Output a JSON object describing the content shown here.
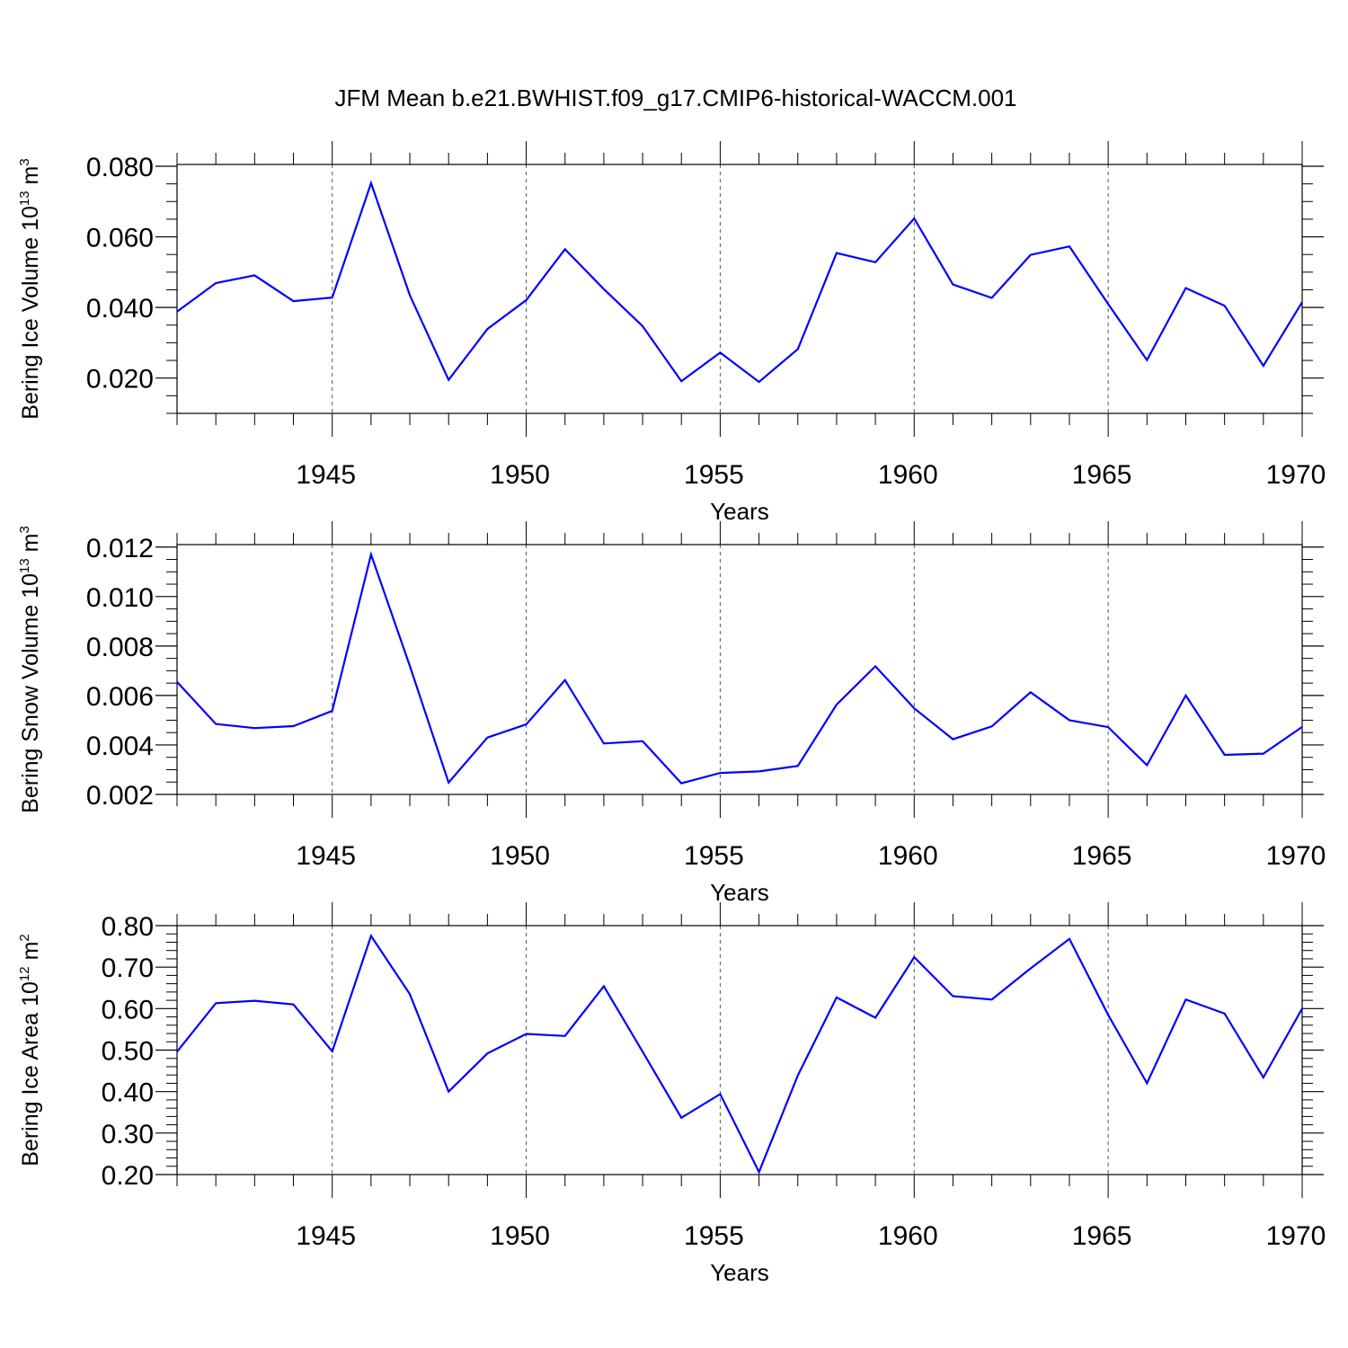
{
  "title": "JFM Mean b.e21.BWHIST.f09_g17.CMIP6-historical-WACCM.001",
  "chart_data": [
    {
      "type": "line",
      "ylabel": "Bering Ice Volume 10",
      "ylabel_exp": "13",
      "ylabel_unit": " m",
      "ylabel_unit_exp": "3",
      "xlabel": "Years",
      "xlim": [
        1941,
        1970
      ],
      "ylim": [
        0.01,
        0.0805
      ],
      "yticks": [
        0.02,
        0.04,
        0.06,
        0.08
      ],
      "ytick_labels": [
        "0.020",
        "0.040",
        "0.060",
        "0.080"
      ],
      "yminor_step": 0.005,
      "xticks": [
        1945,
        1950,
        1955,
        1960,
        1965,
        1970
      ],
      "xtick_labels": [
        "1945",
        "1950",
        "1955",
        "1960",
        "1965",
        "1970"
      ],
      "grid": "dashed vertical lines at major x ticks",
      "line_color": "#0000ff",
      "x": [
        1941,
        1942,
        1943,
        1944,
        1945,
        1946,
        1947,
        1948,
        1949,
        1950,
        1951,
        1952,
        1953,
        1954,
        1955,
        1956,
        1957,
        1958,
        1959,
        1960,
        1961,
        1962,
        1963,
        1964,
        1965,
        1966,
        1967,
        1968,
        1969,
        1970
      ],
      "values": [
        0.0388,
        0.0469,
        0.0491,
        0.0418,
        0.0428,
        0.0752,
        0.0435,
        0.0195,
        0.0339,
        0.0421,
        0.0565,
        0.0452,
        0.0347,
        0.0191,
        0.0272,
        0.0189,
        0.0282,
        0.0554,
        0.0528,
        0.0652,
        0.0465,
        0.0427,
        0.0549,
        0.0573,
        0.041,
        0.0251,
        0.0455,
        0.0405,
        0.0235,
        0.0415
      ]
    },
    {
      "type": "line",
      "ylabel": "Bering Snow Volume 10",
      "ylabel_exp": "13",
      "ylabel_unit": " m",
      "ylabel_unit_exp": "3",
      "xlabel": "Years",
      "xlim": [
        1941,
        1970
      ],
      "ylim": [
        0.002,
        0.0121
      ],
      "yticks": [
        0.002,
        0.004,
        0.006,
        0.008,
        0.01,
        0.012
      ],
      "ytick_labels": [
        "0.002",
        "0.004",
        "0.006",
        "0.008",
        "0.010",
        "0.012"
      ],
      "yminor_step": 0.0005,
      "xticks": [
        1945,
        1950,
        1955,
        1960,
        1965,
        1970
      ],
      "xtick_labels": [
        "1945",
        "1950",
        "1955",
        "1960",
        "1965",
        "1970"
      ],
      "grid": "dashed vertical lines at major x ticks",
      "line_color": "#0000ff",
      "x": [
        1941,
        1942,
        1943,
        1944,
        1945,
        1946,
        1947,
        1948,
        1949,
        1950,
        1951,
        1952,
        1953,
        1954,
        1955,
        1956,
        1957,
        1958,
        1959,
        1960,
        1961,
        1962,
        1963,
        1964,
        1965,
        1966,
        1967,
        1968,
        1969,
        1970
      ],
      "values": [
        0.00655,
        0.00485,
        0.00468,
        0.00476,
        0.00538,
        0.0117,
        0.0072,
        0.00248,
        0.0043,
        0.00483,
        0.00662,
        0.00406,
        0.00415,
        0.00245,
        0.00287,
        0.00293,
        0.00315,
        0.00563,
        0.00718,
        0.00548,
        0.00423,
        0.00475,
        0.00613,
        0.005,
        0.00472,
        0.00318,
        0.006,
        0.0036,
        0.00365,
        0.00473
      ]
    },
    {
      "type": "line",
      "ylabel": "Bering Ice Area 10",
      "ylabel_exp": "12",
      "ylabel_unit": " m",
      "ylabel_unit_exp": "2",
      "xlabel": "Years",
      "xlim": [
        1941,
        1970
      ],
      "ylim": [
        0.2,
        0.8
      ],
      "yticks": [
        0.2,
        0.3,
        0.4,
        0.5,
        0.6,
        0.7,
        0.8
      ],
      "ytick_labels": [
        "0.20",
        "0.30",
        "0.40",
        "0.50",
        "0.60",
        "0.70",
        "0.80"
      ],
      "yminor_step": 0.02,
      "xticks": [
        1945,
        1950,
        1955,
        1960,
        1965,
        1970
      ],
      "xtick_labels": [
        "1945",
        "1950",
        "1955",
        "1960",
        "1965",
        "1970"
      ],
      "grid": "dashed vertical lines at major x ticks",
      "line_color": "#0000ff",
      "x": [
        1941,
        1942,
        1943,
        1944,
        1945,
        1946,
        1947,
        1948,
        1949,
        1950,
        1951,
        1952,
        1953,
        1954,
        1955,
        1956,
        1957,
        1958,
        1959,
        1960,
        1961,
        1962,
        1963,
        1964,
        1965,
        1966,
        1967,
        1968,
        1969,
        1970
      ],
      "values": [
        0.496,
        0.613,
        0.619,
        0.61,
        0.497,
        0.775,
        0.635,
        0.4,
        0.492,
        0.539,
        0.534,
        0.654,
        0.496,
        0.337,
        0.394,
        0.206,
        0.439,
        0.627,
        0.578,
        0.724,
        0.63,
        0.622,
        0.697,
        0.768,
        0.585,
        0.42,
        0.622,
        0.588,
        0.434,
        0.6
      ]
    }
  ]
}
